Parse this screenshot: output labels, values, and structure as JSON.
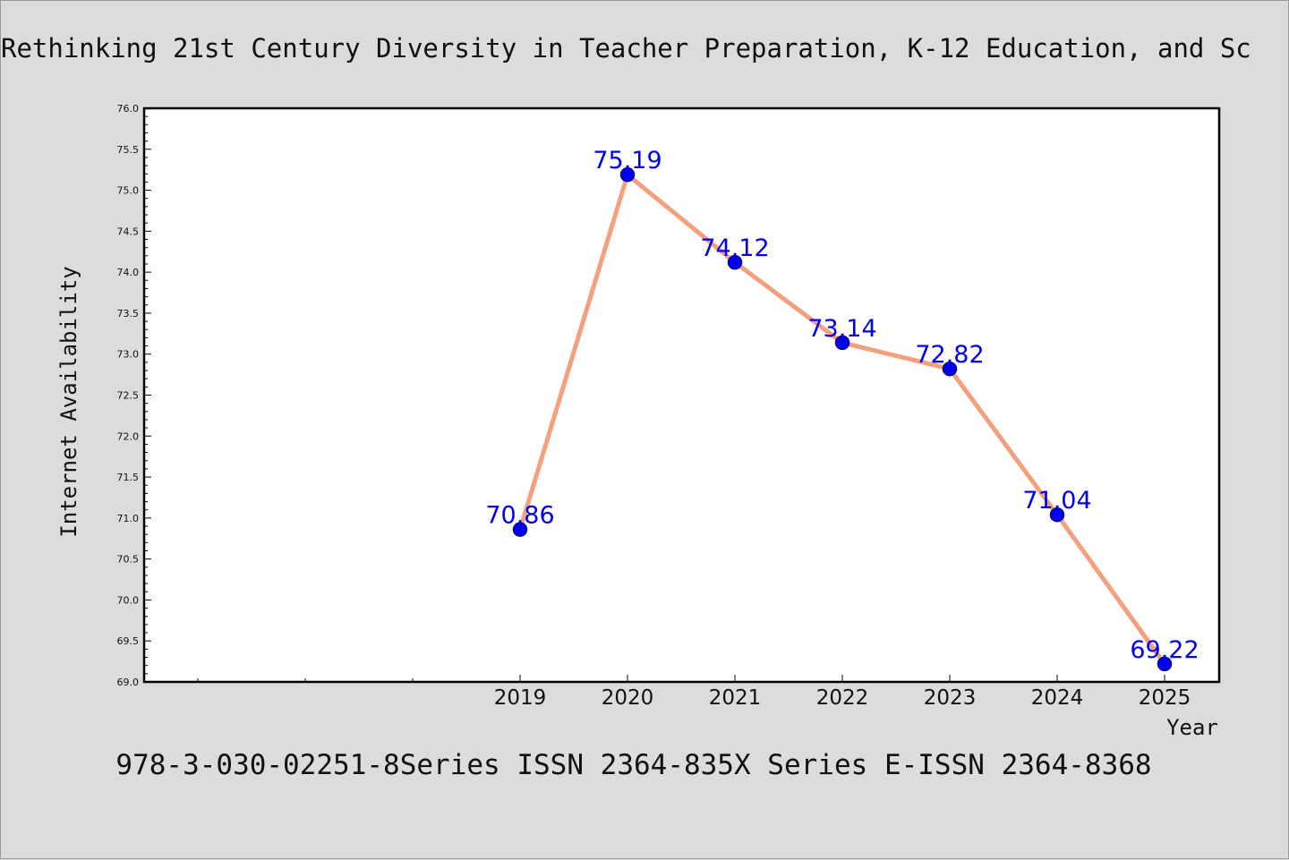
{
  "chart_data": {
    "type": "line",
    "title": "Rethinking 21st Century Diversity in Teacher Preparation, K-12 Education, and Sc",
    "footer": "978-3-030-02251-8Series ISSN 2364-835X Series E-ISSN 2364-8368",
    "xlabel": "Year",
    "ylabel": "Internet Availability",
    "x": [
      "2019",
      "2020",
      "2021",
      "2022",
      "2023",
      "2024",
      "2025"
    ],
    "series": [
      {
        "values": [
          70.86,
          75.19,
          74.12,
          73.14,
          72.82,
          71.04,
          69.22
        ]
      }
    ],
    "data_labels": [
      "70.86",
      "75.19",
      "74.12",
      "73.14",
      "72.82",
      "71.04",
      "69.22"
    ],
    "ylim": [
      69.0,
      76.0
    ],
    "yticks": [
      "69.0",
      "69.5",
      "70.0",
      "70.5",
      "71.0",
      "71.5",
      "72.0",
      "72.5",
      "73.0",
      "73.5",
      "74.0",
      "74.5",
      "75.0",
      "75.5",
      "76.0"
    ],
    "x_slots_before_data": 3,
    "grid": false,
    "colors": {
      "line": "#f4a07e",
      "marker_fill": "#0000ee",
      "marker_edge": "#00008b",
      "data_label": "#0000ee",
      "background": "#dcdcdc",
      "plot_background": "#ffffff"
    }
  }
}
